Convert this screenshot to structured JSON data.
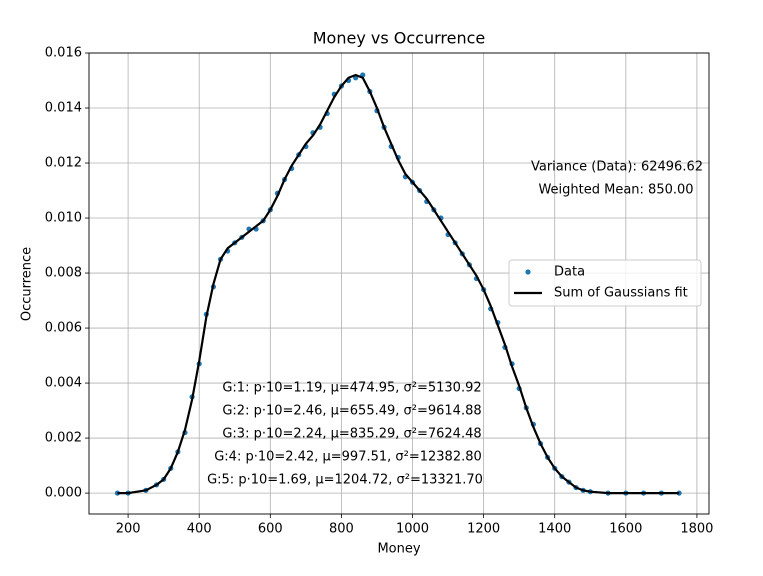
{
  "chart_data": {
    "type": "scatter_fit",
    "title": "Money vs Occurrence",
    "xlabel": "Money",
    "ylabel": "Occurrence",
    "xlim": [
      90,
      1834
    ],
    "ylim": [
      -0.00076,
      0.016
    ],
    "xticks": [
      200,
      400,
      600,
      800,
      1000,
      1200,
      1400,
      1600,
      1800
    ],
    "yticks": [
      {
        "value": 0,
        "label": "0.000"
      },
      {
        "value": 0.002,
        "label": "0.002"
      },
      {
        "value": 0.004,
        "label": "0.004"
      },
      {
        "value": 0.006,
        "label": "0.006"
      },
      {
        "value": 0.008,
        "label": "0.008"
      },
      {
        "value": 0.01,
        "label": "0.010"
      },
      {
        "value": 0.012,
        "label": "0.012"
      },
      {
        "value": 0.014,
        "label": "0.014"
      },
      {
        "value": 0.016,
        "label": "0.016"
      }
    ],
    "grid": true,
    "legend": "center right",
    "x": [
      170,
      200,
      250,
      280,
      300,
      320,
      340,
      360,
      380,
      400,
      420,
      440,
      460,
      480,
      500,
      520,
      540,
      560,
      580,
      600,
      620,
      640,
      660,
      680,
      700,
      720,
      740,
      760,
      780,
      800,
      820,
      840,
      860,
      880,
      900,
      920,
      940,
      960,
      980,
      1000,
      1020,
      1040,
      1060,
      1080,
      1100,
      1120,
      1140,
      1160,
      1180,
      1200,
      1220,
      1240,
      1260,
      1280,
      1300,
      1320,
      1340,
      1360,
      1380,
      1400,
      1420,
      1440,
      1460,
      1480,
      1500,
      1550,
      1600,
      1650,
      1700,
      1750
    ],
    "series": [
      {
        "name": "Data",
        "color": "#1f77b4",
        "style": "points",
        "values": [
          0,
          0,
          0.0001,
          0.0003,
          0.0005,
          0.0009,
          0.0015,
          0.0022,
          0.0035,
          0.0047,
          0.0065,
          0.0075,
          0.0085,
          0.0088,
          0.0091,
          0.0093,
          0.0096,
          0.0096,
          0.0099,
          0.0103,
          0.0109,
          0.0114,
          0.0118,
          0.0123,
          0.0126,
          0.0131,
          0.0133,
          0.0138,
          0.0145,
          0.0148,
          0.015,
          0.0151,
          0.0152,
          0.0146,
          0.0139,
          0.0133,
          0.0126,
          0.0122,
          0.0115,
          0.0113,
          0.011,
          0.0106,
          0.0103,
          0.01,
          0.0094,
          0.0091,
          0.0087,
          0.0083,
          0.0078,
          0.0074,
          0.0067,
          0.0062,
          0.0053,
          0.0047,
          0.0038,
          0.0031,
          0.0025,
          0.0018,
          0.0013,
          0.0009,
          0.0006,
          0.0004,
          0.0002,
          0.0001,
          5e-05,
          0,
          0,
          0,
          0,
          0
        ]
      },
      {
        "name": "Sum of Gaussians fit",
        "color": "#000000",
        "style": "line",
        "values": [
          0,
          0,
          0.0001,
          0.0003,
          0.0005,
          0.0009,
          0.0015,
          0.0023,
          0.0034,
          0.0048,
          0.0064,
          0.0076,
          0.0085,
          0.0089,
          0.0091,
          0.0093,
          0.0095,
          0.0097,
          0.0099,
          0.0103,
          0.0108,
          0.0114,
          0.0119,
          0.0123,
          0.0127,
          0.013,
          0.0134,
          0.0139,
          0.0144,
          0.0148,
          0.0151,
          0.0152,
          0.0151,
          0.0146,
          0.014,
          0.0133,
          0.0127,
          0.0121,
          0.0116,
          0.0113,
          0.011,
          0.0107,
          0.0103,
          0.0099,
          0.0095,
          0.0091,
          0.0087,
          0.0083,
          0.0079,
          0.0074,
          0.0068,
          0.0061,
          0.0054,
          0.0046,
          0.0039,
          0.0031,
          0.0024,
          0.0018,
          0.0013,
          0.0009,
          0.0006,
          0.0004,
          0.0002,
          0.0001,
          5e-05,
          0,
          0,
          0,
          0,
          0
        ]
      }
    ],
    "annotations": [
      "Variance (Data): 62496.62",
      "Weighted Mean: 850.00",
      "G:1: p·10=1.19, μ=474.95, σ²=5130.92",
      "G:2: p·10=2.46, μ=655.49, σ²=9614.88",
      "G:3: p·10=2.24, μ=835.29, σ²=7624.48",
      "G:4: p·10=2.42, μ=997.51, σ²=12382.80",
      "G:5: p·10=1.69, μ=1204.72, σ²=13321.70"
    ]
  }
}
